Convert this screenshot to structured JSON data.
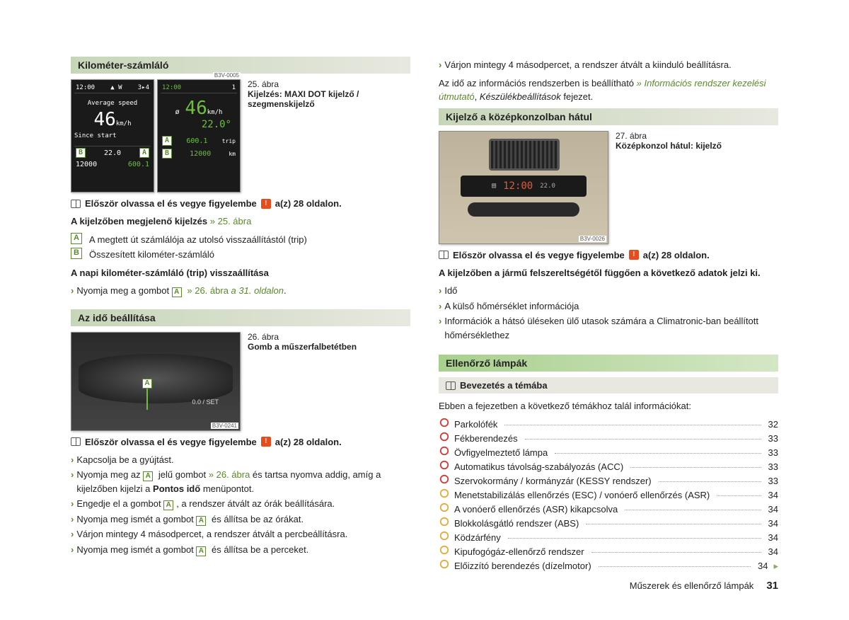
{
  "left": {
    "odometer": {
      "header": "Kilométer-számláló",
      "fig_num": "25. ábra",
      "fig_title": "Kijelzés: MAXI DOT kijelző / szegmenskijelző",
      "img_code": "B3V-0005",
      "disp_a": {
        "time": "12:00",
        "compass": "▲ W",
        "gear": "3▸4",
        "label_avg": "Average speed",
        "speed": "46",
        "speed_unit": "km/h",
        "since": "Since start",
        "temp": "22.0",
        "trip": "600.1",
        "total": "12000"
      },
      "disp_b": {
        "time": "12:00",
        "gear": "1",
        "diameter": "ø",
        "speed": "46",
        "speed_unit": "km/h",
        "temp": "22.0°",
        "trip_label": "trip",
        "trip": "600.1",
        "total": "12000",
        "total_unit": "km"
      },
      "notice_pre": "Először olvassa el és vegye figyelembe",
      "notice_post": "a(z) 28 oldalon.",
      "display_items_title": "A kijelzőben megjelenő kijelzés",
      "display_items_link": "» 25. ábra",
      "item_a": "A megtett út számlálója az utolsó visszaállítástól (trip)",
      "item_b": "Összesített kilométer-számláló",
      "reset_title": "A napi kilométer-számláló (trip) visszaállítása",
      "reset_text_pre": "Nyomja meg a gombot",
      "reset_text_link": "» 26. ábra",
      "reset_text_post": "a 31. oldalon"
    },
    "time": {
      "header": "Az idő beállítása",
      "fig_num": "26. ábra",
      "fig_title": "Gomb a műszerfalbetétben",
      "img_code": "B3V-0241",
      "set_label": "0.0 / SET",
      "notice_pre": "Először olvassa el és vegye figyelembe",
      "notice_post": "a(z) 28 oldalon.",
      "step1": "Kapcsolja be a gyújtást.",
      "step2_a": "Nyomja meg az",
      "step2_b": "jelű gombot",
      "step2_link": "» 26. ábra",
      "step2_c": "és tartsa nyomva addig, amíg a kijelzőben kijelzi a",
      "step2_d": "Pontos idő",
      "step2_e": "menüpontot.",
      "step3_a": "Engedje el a gombot",
      "step3_b": ", a rendszer átvált az órák beállítására.",
      "step4_a": "Nyomja meg ismét a gombot",
      "step4_b": "és állítsa be az órákat.",
      "step5": "Várjon mintegy 4 másodpercet, a rendszer átvált a percbeállításra.",
      "step6_a": "Nyomja meg ismét a gombot",
      "step6_b": "és állítsa be a perceket."
    }
  },
  "right": {
    "top_step": "Várjon mintegy 4 másodpercet, a rendszer átvált a kiinduló beállításra.",
    "info_text_a": "Az idő az információs rendszerben is beállítható",
    "info_text_link": "» Információs rendszer kezelési útmutató",
    "info_text_b": ", ",
    "info_text_c": "Készülékbeállítások",
    "info_text_d": " fejezet.",
    "rear": {
      "header": "Kijelző a középkonzolban hátul",
      "fig_num": "27. ábra",
      "fig_title": "Középkonzol hátul: kijelző",
      "img_code": "B3V-0026",
      "panel_time": "12:00",
      "panel_temp": "22.0",
      "notice_pre": "Először olvassa el és vegye figyelembe",
      "notice_post": "a(z) 28 oldalon.",
      "equip_title": "A kijelzőben a jármű felszereltségétől függően a következő adatok jelzi ki.",
      "b1": "Idő",
      "b2": "A külső hőmérséklet információja",
      "b3": "Információk a hátsó üléseken ülő utasok számára a Climatronic-ban beállított hőmérséklethez"
    },
    "lamps": {
      "header": "Ellenőrző lámpák",
      "sub_header": "Bevezetés a témába",
      "intro": "Ebben a fejezetben a következő témákhoz talál információkat:",
      "items": [
        {
          "color": "#d8342a",
          "label": "Parkolófék",
          "page": "32"
        },
        {
          "color": "#d8342a",
          "label": "Fékberendezés",
          "page": "33"
        },
        {
          "color": "#d8342a",
          "label": "Övfigyelmeztető lámpa",
          "page": "33"
        },
        {
          "color": "#d8342a",
          "label": "Automatikus távolság-szabályozás (ACC)",
          "page": "33"
        },
        {
          "color": "#d8342a",
          "label": "Szervokormány / kormányzár (KESSY rendszer)",
          "page": "33"
        },
        {
          "color": "#e6a733",
          "label": "Menetstabilizálás ellenőrzés (ESC) / vonóerő ellenőrzés (ASR)",
          "page": "34"
        },
        {
          "color": "#e6a733",
          "label": "A vonóerő ellenőrzés (ASR) kikapcsolva",
          "page": "34"
        },
        {
          "color": "#e6a733",
          "label": "Blokkolásgátló rendszer (ABS)",
          "page": "34"
        },
        {
          "color": "#e6a733",
          "label": "Ködzárfény",
          "page": "34"
        },
        {
          "color": "#e6a733",
          "label": "Kipufogógáz-ellenőrző rendszer",
          "page": "34"
        },
        {
          "color": "#e6a733",
          "label": "Előizzító berendezés (dízelmotor)",
          "page": "34"
        }
      ]
    }
  },
  "footer": {
    "chapter": "Műszerek és ellenőrző lámpák",
    "page": "31"
  }
}
